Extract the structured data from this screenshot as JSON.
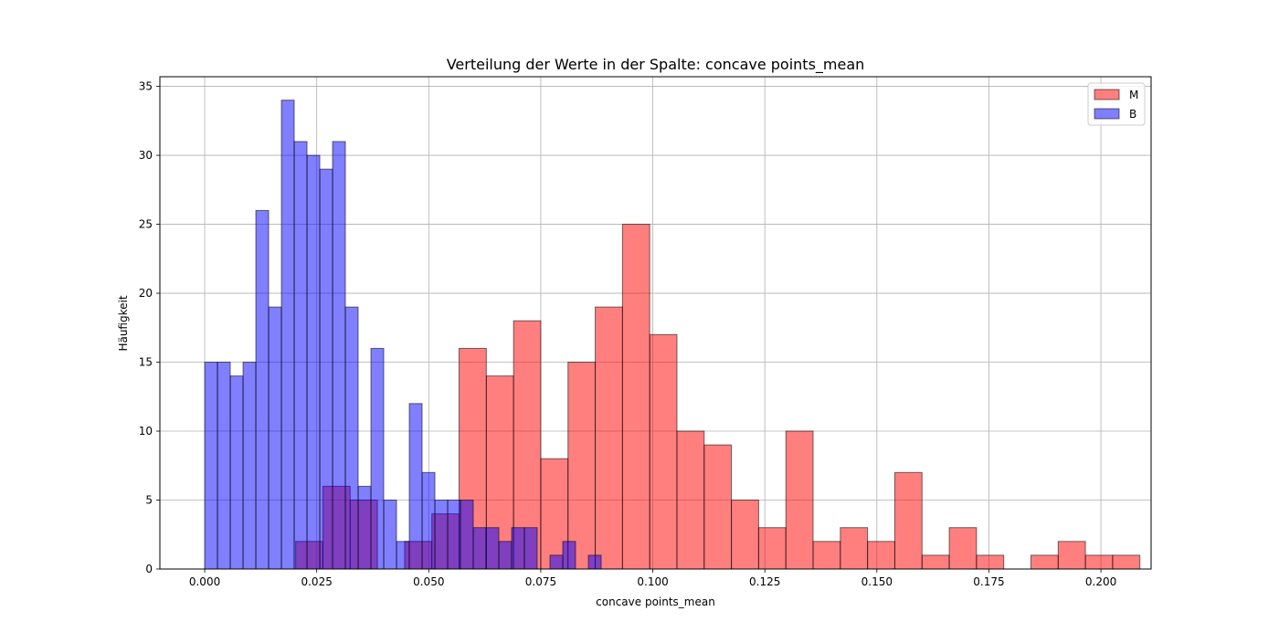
{
  "chart_data": {
    "type": "bar",
    "subtype": "overlaid-histogram",
    "title": "Verteilung der Werte in der Spalte: concave points_mean",
    "xlabel": "concave points_mean",
    "ylabel": "Häufigkeit",
    "xlim": [
      -0.01,
      0.2112
    ],
    "ylim": [
      0,
      35.7
    ],
    "xticks": [
      0.0,
      0.025,
      0.05,
      0.075,
      0.1,
      0.125,
      0.15,
      0.175,
      0.2
    ],
    "xtick_labels": [
      "0.000",
      "0.025",
      "0.050",
      "0.075",
      "0.100",
      "0.125",
      "0.150",
      "0.175",
      "0.200"
    ],
    "yticks": [
      0,
      5,
      10,
      15,
      20,
      25,
      30,
      35
    ],
    "ytick_labels": [
      "0",
      "5",
      "10",
      "15",
      "20",
      "25",
      "30",
      "35"
    ],
    "grid": true,
    "legend": "top-right",
    "series": [
      {
        "name": "M",
        "color": "#ff0000",
        "alpha": 0.5,
        "bin_start": 0.02031,
        "bin_width": 0.006077,
        "counts": [
          2,
          6,
          5,
          0,
          2,
          4,
          16,
          14,
          18,
          8,
          15,
          19,
          25,
          17,
          10,
          9,
          5,
          3,
          10,
          2,
          3,
          2,
          7,
          1,
          3,
          1,
          0,
          1,
          2,
          1,
          1
        ]
      },
      {
        "name": "B",
        "color": "#0000ff",
        "alpha": 0.5,
        "bin_start": 0.0,
        "bin_width": 0.002854,
        "counts": [
          15,
          15,
          14,
          15,
          26,
          19,
          34,
          31,
          30,
          29,
          31,
          19,
          6,
          16,
          5,
          2,
          12,
          7,
          5,
          5,
          5,
          3,
          3,
          2,
          3,
          3,
          0,
          1,
          2,
          0,
          1
        ]
      }
    ]
  }
}
